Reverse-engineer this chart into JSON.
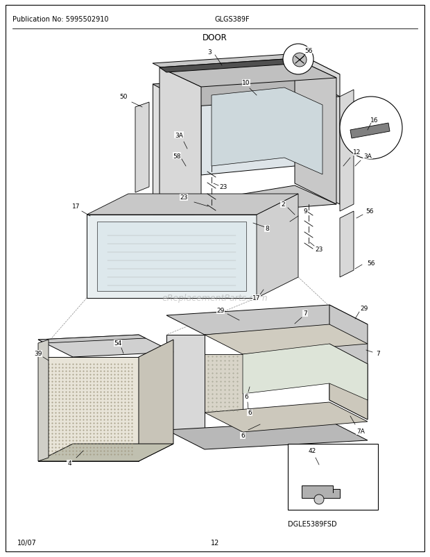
{
  "title": "DOOR",
  "pub_no": "Publication No: 5995502910",
  "model": "GLGS389F",
  "diagram_code": "DGLE5389FSD",
  "date": "10/07",
  "page": "12",
  "bg_color": "#ffffff",
  "text_color": "#000000",
  "watermark": "eReplacementParts.com",
  "light_gray": "#e8e8e8",
  "mid_gray": "#d0d0d0",
  "dark_gray": "#a0a0a0",
  "very_light": "#f0f0f0"
}
